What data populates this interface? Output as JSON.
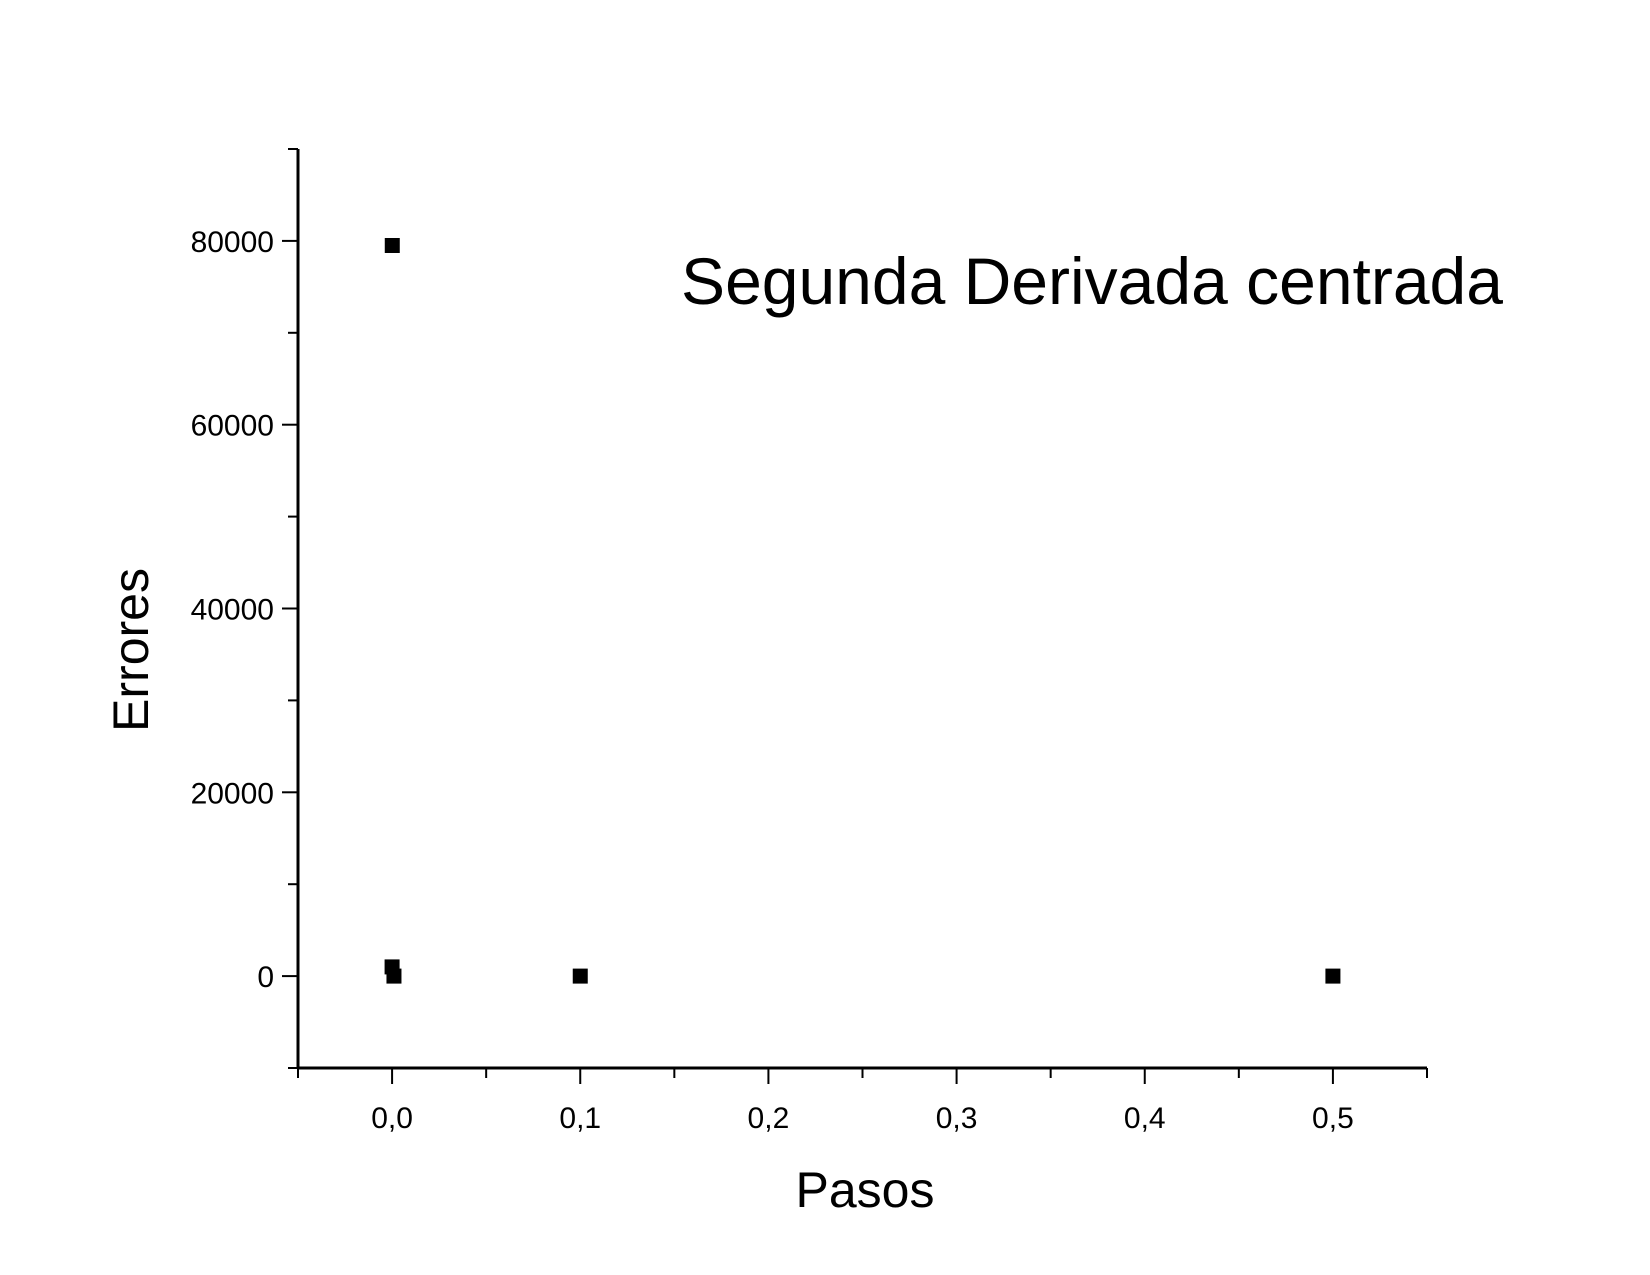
{
  "chart_data": {
    "type": "scatter",
    "title": "Segunda Derivada centrada",
    "xlabel": "Pasos",
    "ylabel": "Errores",
    "xlim": [
      -0.05,
      0.55
    ],
    "ylim": [
      -10000,
      90000
    ],
    "x_ticks": [
      0.0,
      0.1,
      0.2,
      0.3,
      0.4,
      0.5
    ],
    "x_tick_labels": [
      "0,0",
      "0,1",
      "0,2",
      "0,3",
      "0,4",
      "0,5"
    ],
    "y_ticks": [
      0,
      20000,
      40000,
      60000,
      80000
    ],
    "y_tick_labels": [
      "0",
      "20000",
      "40000",
      "60000",
      "80000"
    ],
    "grid": false,
    "marker": "square",
    "colors": {
      "marker": "#000000",
      "axis": "#000000"
    },
    "series": [
      {
        "x": [
          0.0001,
          0.0,
          0.001,
          0.1,
          0.5
        ],
        "y": [
          79500,
          1000,
          0,
          0,
          0
        ]
      }
    ]
  }
}
